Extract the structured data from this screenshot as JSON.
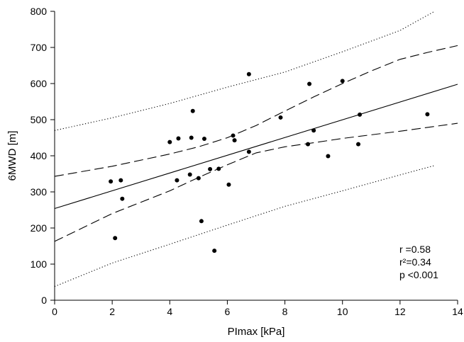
{
  "chart_data": {
    "type": "scatter",
    "xlabel": "PImax [kPa]",
    "ylabel": "6MWD [m]",
    "xlim": [
      0,
      14
    ],
    "ylim": [
      0,
      800
    ],
    "xticks": [
      0,
      2,
      4,
      6,
      8,
      10,
      12,
      14
    ],
    "yticks": [
      0,
      100,
      200,
      300,
      400,
      500,
      600,
      700,
      800
    ],
    "grid": false,
    "points": [
      {
        "x": 1.95,
        "y": 329
      },
      {
        "x": 2.1,
        "y": 172
      },
      {
        "x": 2.3,
        "y": 332
      },
      {
        "x": 2.35,
        "y": 281
      },
      {
        "x": 4.0,
        "y": 438
      },
      {
        "x": 4.25,
        "y": 332
      },
      {
        "x": 4.3,
        "y": 448
      },
      {
        "x": 4.7,
        "y": 348
      },
      {
        "x": 4.75,
        "y": 450
      },
      {
        "x": 4.8,
        "y": 524
      },
      {
        "x": 5.0,
        "y": 338
      },
      {
        "x": 5.1,
        "y": 219
      },
      {
        "x": 5.2,
        "y": 447
      },
      {
        "x": 5.4,
        "y": 363
      },
      {
        "x": 5.55,
        "y": 137
      },
      {
        "x": 5.7,
        "y": 364
      },
      {
        "x": 6.05,
        "y": 320
      },
      {
        "x": 6.2,
        "y": 456
      },
      {
        "x": 6.25,
        "y": 443
      },
      {
        "x": 6.75,
        "y": 626
      },
      {
        "x": 6.75,
        "y": 411
      },
      {
        "x": 7.85,
        "y": 506
      },
      {
        "x": 8.8,
        "y": 432
      },
      {
        "x": 8.85,
        "y": 599
      },
      {
        "x": 9.0,
        "y": 470
      },
      {
        "x": 9.5,
        "y": 399
      },
      {
        "x": 10.0,
        "y": 607
      },
      {
        "x": 10.55,
        "y": 432
      },
      {
        "x": 10.6,
        "y": 514
      },
      {
        "x": 12.95,
        "y": 515
      }
    ],
    "regression_line": {
      "style": "solid",
      "x": [
        0,
        14
      ],
      "y": [
        254,
        598
      ]
    },
    "confidence_band": {
      "style": "dashed",
      "x": [
        0,
        2,
        4,
        5,
        6,
        7,
        8,
        9,
        10,
        11,
        12,
        13,
        14
      ],
      "upper": [
        343,
        371,
        405,
        425,
        450,
        484,
        524,
        563,
        600,
        635,
        667,
        687,
        705
      ],
      "lower": [
        163,
        240,
        303,
        340,
        375,
        408,
        425,
        436,
        448,
        458,
        468,
        479,
        490
      ]
    },
    "prediction_band": {
      "style": "dotted",
      "x": [
        0,
        2,
        4,
        6,
        8,
        10,
        12,
        13.2
      ],
      "upper": [
        470,
        505,
        545,
        590,
        632,
        688,
        747,
        800
      ],
      "lower": [
        38,
        103,
        155,
        208,
        260,
        303,
        347,
        373
      ]
    },
    "annotations": [
      "r =0.58",
      "r²=0.34",
      "p <0.001"
    ]
  }
}
